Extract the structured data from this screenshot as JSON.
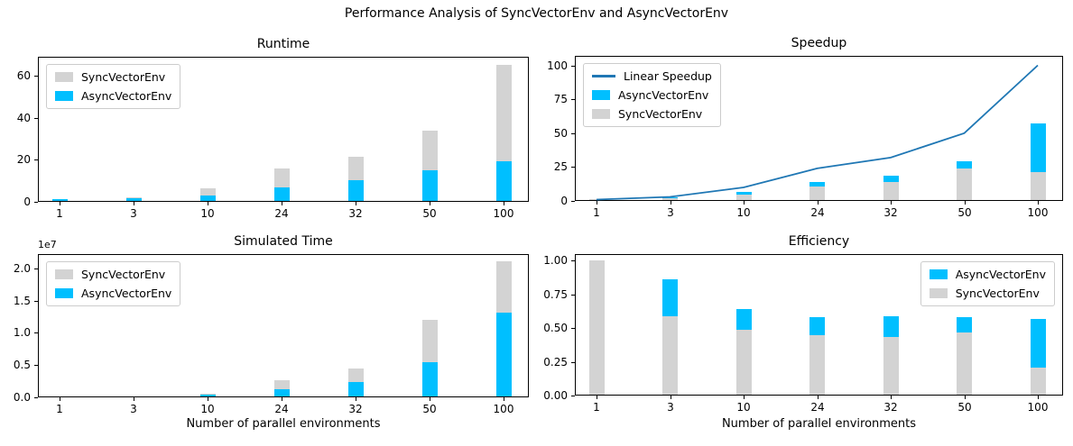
{
  "figure": {
    "suptitle": "Performance Analysis of SyncVectorEnv and AsyncVectorEnv",
    "background": "#ffffff",
    "colors": {
      "sync": "#d3d3d3",
      "async": "#00bfff",
      "line": "#1f77b4"
    }
  },
  "xlabel": "Number of parallel environments",
  "categories": [
    "1",
    "3",
    "10",
    "24",
    "32",
    "50",
    "100"
  ],
  "chart_data": [
    {
      "id": "runtime",
      "type": "bar",
      "title": "Runtime",
      "categories": [
        "1",
        "3",
        "10",
        "24",
        "32",
        "50",
        "100"
      ],
      "series": [
        {
          "name": "SyncVectorEnv",
          "color": "sync",
          "values": [
            1.0,
            2.2,
            6.4,
            16.0,
            21.6,
            33.7,
            65.3
          ]
        },
        {
          "name": "AsyncVectorEnv",
          "color": "async",
          "values": [
            1.1,
            1.7,
            2.9,
            6.9,
            10.4,
            15.1,
            19.3
          ]
        }
      ],
      "yticks": [
        0,
        20,
        40,
        60
      ],
      "ytick_labels": [
        "0",
        "20",
        "40",
        "60"
      ],
      "ylim": [
        0,
        69
      ],
      "grid": false,
      "legend": {
        "position": "top-left",
        "entries": [
          {
            "label": "SyncVectorEnv",
            "swatch": "patch",
            "color": "sync"
          },
          {
            "label": "AsyncVectorEnv",
            "swatch": "patch",
            "color": "async"
          }
        ]
      }
    },
    {
      "id": "speedup",
      "type": "bar+line",
      "title": "Speedup",
      "categories": [
        "1",
        "3",
        "10",
        "24",
        "32",
        "50",
        "100"
      ],
      "line": {
        "name": "Linear Speedup",
        "color": "line",
        "values": [
          1,
          3,
          10,
          24,
          32,
          50,
          100
        ]
      },
      "series": [
        {
          "name": "AsyncVectorEnv",
          "color": "async",
          "values": [
            1.0,
            2.6,
            6.5,
            13.9,
            18.9,
            29.2,
            57.3
          ]
        },
        {
          "name": "SyncVectorEnv",
          "color": "sync",
          "values": [
            1.0,
            1.8,
            4.6,
            10.9,
            14.1,
            23.8,
            21.0
          ]
        }
      ],
      "yticks": [
        0,
        25,
        50,
        75,
        100
      ],
      "ytick_labels": [
        "0",
        "25",
        "50",
        "75",
        "100"
      ],
      "ylim": [
        0,
        107
      ],
      "grid": false,
      "legend": {
        "position": "top-left",
        "entries": [
          {
            "label": "Linear Speedup",
            "swatch": "line",
            "color": "line"
          },
          {
            "label": "AsyncVectorEnv",
            "swatch": "patch",
            "color": "async"
          },
          {
            "label": "SyncVectorEnv",
            "swatch": "patch",
            "color": "sync"
          }
        ]
      }
    },
    {
      "id": "simulated_time",
      "type": "bar",
      "title": "Simulated Time",
      "categories": [
        "1",
        "3",
        "10",
        "24",
        "32",
        "50",
        "100"
      ],
      "y_offset_text": "1e7",
      "y_unit": 10000000,
      "series": [
        {
          "name": "SyncVectorEnv",
          "color": "sync",
          "values": [
            0.004,
            0.012,
            0.06,
            0.26,
            0.44,
            1.2,
            2.11
          ]
        },
        {
          "name": "AsyncVectorEnv",
          "color": "async",
          "values": [
            0.003,
            0.02,
            0.045,
            0.13,
            0.24,
            0.545,
            1.31
          ]
        }
      ],
      "yticks": [
        0.0,
        0.5,
        1.0,
        1.5,
        2.0
      ],
      "ytick_labels": [
        "0.0",
        "0.5",
        "1.0",
        "1.5",
        "2.0"
      ],
      "ylim": [
        0,
        2.22
      ],
      "grid": false,
      "legend": {
        "position": "top-left",
        "entries": [
          {
            "label": "SyncVectorEnv",
            "swatch": "patch",
            "color": "sync"
          },
          {
            "label": "AsyncVectorEnv",
            "swatch": "patch",
            "color": "async"
          }
        ]
      }
    },
    {
      "id": "efficiency",
      "type": "bar",
      "title": "Efficiency",
      "categories": [
        "1",
        "3",
        "10",
        "24",
        "32",
        "50",
        "100"
      ],
      "series": [
        {
          "name": "AsyncVectorEnv",
          "color": "async",
          "values": [
            1.0,
            0.86,
            0.64,
            0.58,
            0.585,
            0.58,
            0.565
          ]
        },
        {
          "name": "SyncVectorEnv",
          "color": "sync",
          "values": [
            1.0,
            0.59,
            0.49,
            0.45,
            0.435,
            0.47,
            0.21
          ]
        }
      ],
      "yticks": [
        0.0,
        0.25,
        0.5,
        0.75,
        1.0
      ],
      "ytick_labels": [
        "0.00",
        "0.25",
        "0.50",
        "0.75",
        "1.00"
      ],
      "ylim": [
        0,
        1.047
      ],
      "grid": false,
      "legend": {
        "position": "top-right",
        "entries": [
          {
            "label": "AsyncVectorEnv",
            "swatch": "patch",
            "color": "async"
          },
          {
            "label": "SyncVectorEnv",
            "swatch": "patch",
            "color": "sync"
          }
        ]
      }
    }
  ]
}
